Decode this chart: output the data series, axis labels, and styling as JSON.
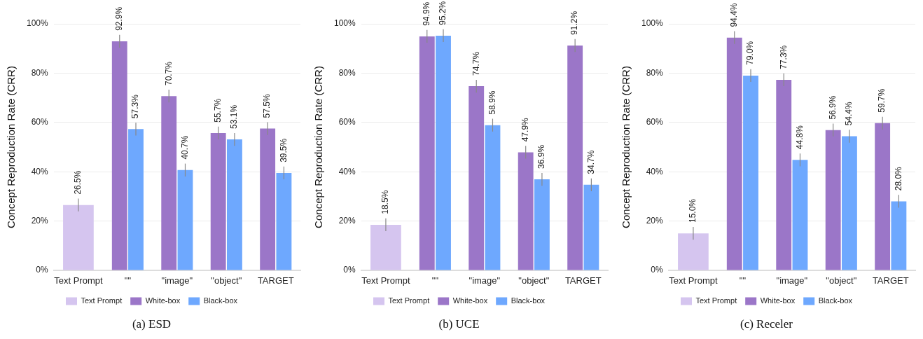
{
  "chart_data": [
    {
      "type": "bar",
      "title": "(a) ESD",
      "ylabel": "Concept Reproduction Rate (CRR)",
      "categories": [
        "Text Prompt",
        "\"\"",
        "\"image\"",
        "\"object\"",
        "TARGET"
      ],
      "series": [
        {
          "name": "Text Prompt",
          "color": "#d5c5ef",
          "values": [
            26.5,
            null,
            null,
            null,
            null
          ],
          "errors": [
            2.6,
            null,
            null,
            null,
            null
          ],
          "value_labels": [
            "26.5%",
            null,
            null,
            null,
            null
          ]
        },
        {
          "name": "White-box",
          "color": "#9b76c8",
          "values": [
            null,
            92.9,
            70.7,
            55.7,
            57.5
          ],
          "errors": [
            null,
            2.6,
            2.6,
            2.6,
            2.6
          ],
          "value_labels": [
            null,
            "92.9%",
            "70.7%",
            "55.7%",
            "57.5%"
          ]
        },
        {
          "name": "Black-box",
          "color": "#6ea8fe",
          "values": [
            null,
            57.3,
            40.7,
            53.1,
            39.5
          ],
          "errors": [
            null,
            2.6,
            2.6,
            2.6,
            2.6
          ],
          "value_labels": [
            null,
            "57.3%",
            "40.7%",
            "53.1%",
            "39.5%"
          ]
        }
      ],
      "ylim": [
        0,
        100
      ],
      "yticks": [
        {
          "value": 0,
          "label": "0%"
        },
        {
          "value": 20,
          "label": "20%"
        },
        {
          "value": 40,
          "label": "40%"
        },
        {
          "value": 60,
          "label": "60%"
        },
        {
          "value": 80,
          "label": "80%"
        },
        {
          "value": 100,
          "label": "100%"
        }
      ],
      "grid": "y",
      "legend": "bottom"
    },
    {
      "type": "bar",
      "title": "(b) UCE",
      "ylabel": "Concept Reproduction Rate (CRR)",
      "categories": [
        "Text Prompt",
        "\"\"",
        "\"image\"",
        "\"object\"",
        "TARGET"
      ],
      "series": [
        {
          "name": "Text Prompt",
          "color": "#d5c5ef",
          "values": [
            18.5,
            null,
            null,
            null,
            null
          ],
          "errors": [
            2.6,
            null,
            null,
            null,
            null
          ],
          "value_labels": [
            "18.5%",
            null,
            null,
            null,
            null
          ]
        },
        {
          "name": "White-box",
          "color": "#9b76c8",
          "values": [
            null,
            94.9,
            74.7,
            47.9,
            91.2
          ],
          "errors": [
            null,
            2.6,
            2.6,
            2.6,
            2.6
          ],
          "value_labels": [
            null,
            "94.9%",
            "74.7%",
            "47.9%",
            "91.2%"
          ]
        },
        {
          "name": "Black-box",
          "color": "#6ea8fe",
          "values": [
            null,
            95.2,
            58.9,
            36.9,
            34.7
          ],
          "errors": [
            null,
            2.6,
            2.6,
            2.6,
            2.6
          ],
          "value_labels": [
            null,
            "95.2%",
            "58.9%",
            "36.9%",
            "34.7%"
          ]
        }
      ],
      "ylim": [
        0,
        100
      ],
      "yticks": [
        {
          "value": 0,
          "label": "0%"
        },
        {
          "value": 20,
          "label": "20%"
        },
        {
          "value": 40,
          "label": "40%"
        },
        {
          "value": 60,
          "label": "60%"
        },
        {
          "value": 80,
          "label": "80%"
        },
        {
          "value": 100,
          "label": "100%"
        }
      ],
      "grid": "y",
      "legend": "bottom"
    },
    {
      "type": "bar",
      "title": "(c) Receler",
      "ylabel": "Concept Reproduction Rate (CRR)",
      "categories": [
        "Text Prompt",
        "\"\"",
        "\"image\"",
        "\"object\"",
        "TARGET"
      ],
      "series": [
        {
          "name": "Text Prompt",
          "color": "#d5c5ef",
          "values": [
            15.0,
            null,
            null,
            null,
            null
          ],
          "errors": [
            2.6,
            null,
            null,
            null,
            null
          ],
          "value_labels": [
            "15.0%",
            null,
            null,
            null,
            null
          ]
        },
        {
          "name": "White-box",
          "color": "#9b76c8",
          "values": [
            null,
            94.4,
            77.3,
            56.9,
            59.7
          ],
          "errors": [
            null,
            2.6,
            2.6,
            2.6,
            2.6
          ],
          "value_labels": [
            null,
            "94.4%",
            "77.3%",
            "56.9%",
            "59.7%"
          ]
        },
        {
          "name": "Black-box",
          "color": "#6ea8fe",
          "values": [
            null,
            79.0,
            44.8,
            54.4,
            28.0
          ],
          "errors": [
            null,
            2.6,
            2.6,
            2.6,
            2.6
          ],
          "value_labels": [
            null,
            "79.0%",
            "44.8%",
            "54.4%",
            "28.0%"
          ]
        }
      ],
      "ylim": [
        0,
        100
      ],
      "yticks": [
        {
          "value": 0,
          "label": "0%"
        },
        {
          "value": 20,
          "label": "20%"
        },
        {
          "value": 40,
          "label": "40%"
        },
        {
          "value": 60,
          "label": "60%"
        },
        {
          "value": 80,
          "label": "80%"
        },
        {
          "value": 100,
          "label": "100%"
        }
      ],
      "grid": "y",
      "legend": "bottom"
    }
  ]
}
